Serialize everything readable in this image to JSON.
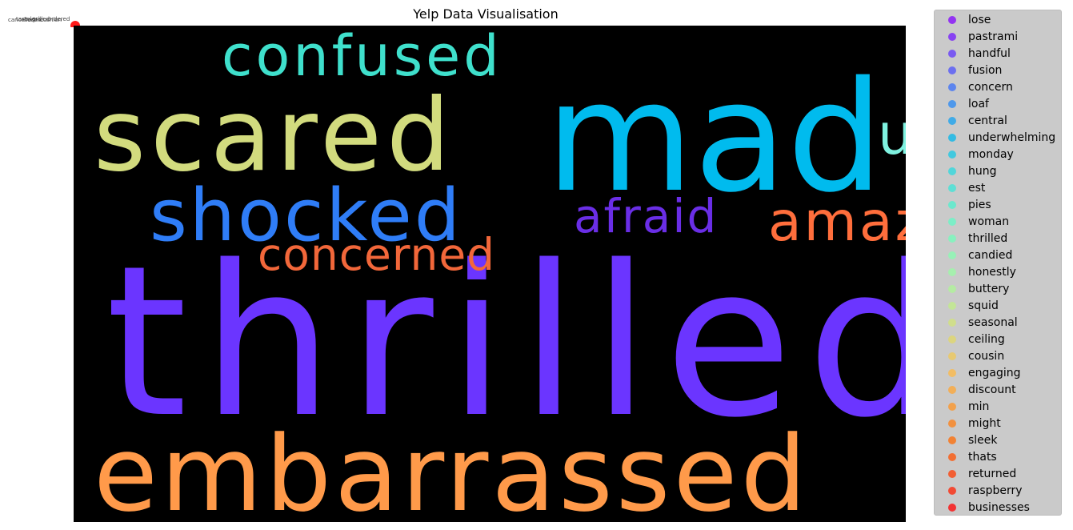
{
  "chart_data": {
    "type": "scatter",
    "title": "Yelp Data Visualisation",
    "series": [
      {
        "name": "lose",
        "color": "#8000ff"
      },
      {
        "name": "pastrami",
        "color": "#7216ff"
      },
      {
        "name": "handful",
        "color": "#5e34fe"
      },
      {
        "name": "fusion",
        "color": "#4c50fc"
      },
      {
        "name": "concern",
        "color": "#386df9"
      },
      {
        "name": "loaf",
        "color": "#2487f5"
      },
      {
        "name": "central",
        "color": "#12a0f0"
      },
      {
        "name": "underwhelming",
        "color": "#00b5eb"
      },
      {
        "name": "monday",
        "color": "#14c8e5"
      },
      {
        "name": "hung",
        "color": "#28d9df"
      },
      {
        "name": "est",
        "color": "#3ae6d8"
      },
      {
        "name": "pies",
        "color": "#4cf2ce"
      },
      {
        "name": "woman",
        "color": "#62fac6"
      },
      {
        "name": "thrilled",
        "color": "#72febb"
      },
      {
        "name": "candied",
        "color": "#86feb0"
      },
      {
        "name": "honestly",
        "color": "#9afba4"
      },
      {
        "name": "buttery",
        "color": "#aef695"
      },
      {
        "name": "squid",
        "color": "#c0ee86"
      },
      {
        "name": "seasonal",
        "color": "#d2e477"
      },
      {
        "name": "ceiling",
        "color": "#e2d866"
      },
      {
        "name": "cousin",
        "color": "#f0c854"
      },
      {
        "name": "engaging",
        "color": "#ffb842"
      },
      {
        "name": "discount",
        "color": "#ffa632"
      },
      {
        "name": "min",
        "color": "#ff9321"
      },
      {
        "name": "might",
        "color": "#ff7d11"
      },
      {
        "name": "sleek",
        "color": "#ff6a00"
      },
      {
        "name": "thats",
        "color": "#ff5000"
      },
      {
        "name": "returned",
        "color": "#ff3900"
      },
      {
        "name": "raspberry",
        "color": "#ff1f00"
      },
      {
        "name": "businesses",
        "color": "#ff0000"
      }
    ],
    "legend": "upper right",
    "grid": false,
    "wordcloud": {
      "background": "#000000",
      "words": [
        {
          "text": "thrilled",
          "color": "#6b35ff"
        },
        {
          "text": "mad",
          "color": "#00bbee"
        },
        {
          "text": "scared",
          "color": "#d2db7e"
        },
        {
          "text": "embarrassed",
          "color": "#ff9a4a"
        },
        {
          "text": "shocked",
          "color": "#2f7df7"
        },
        {
          "text": "confused",
          "color": "#3fe0cc"
        },
        {
          "text": "upset",
          "color": "#7ff2e0"
        },
        {
          "text": "amazed",
          "color": "#ff6e3c"
        },
        {
          "text": "afraid",
          "color": "#6a2ee6"
        },
        {
          "text": "concerned",
          "color": "#f2673a"
        }
      ]
    }
  }
}
